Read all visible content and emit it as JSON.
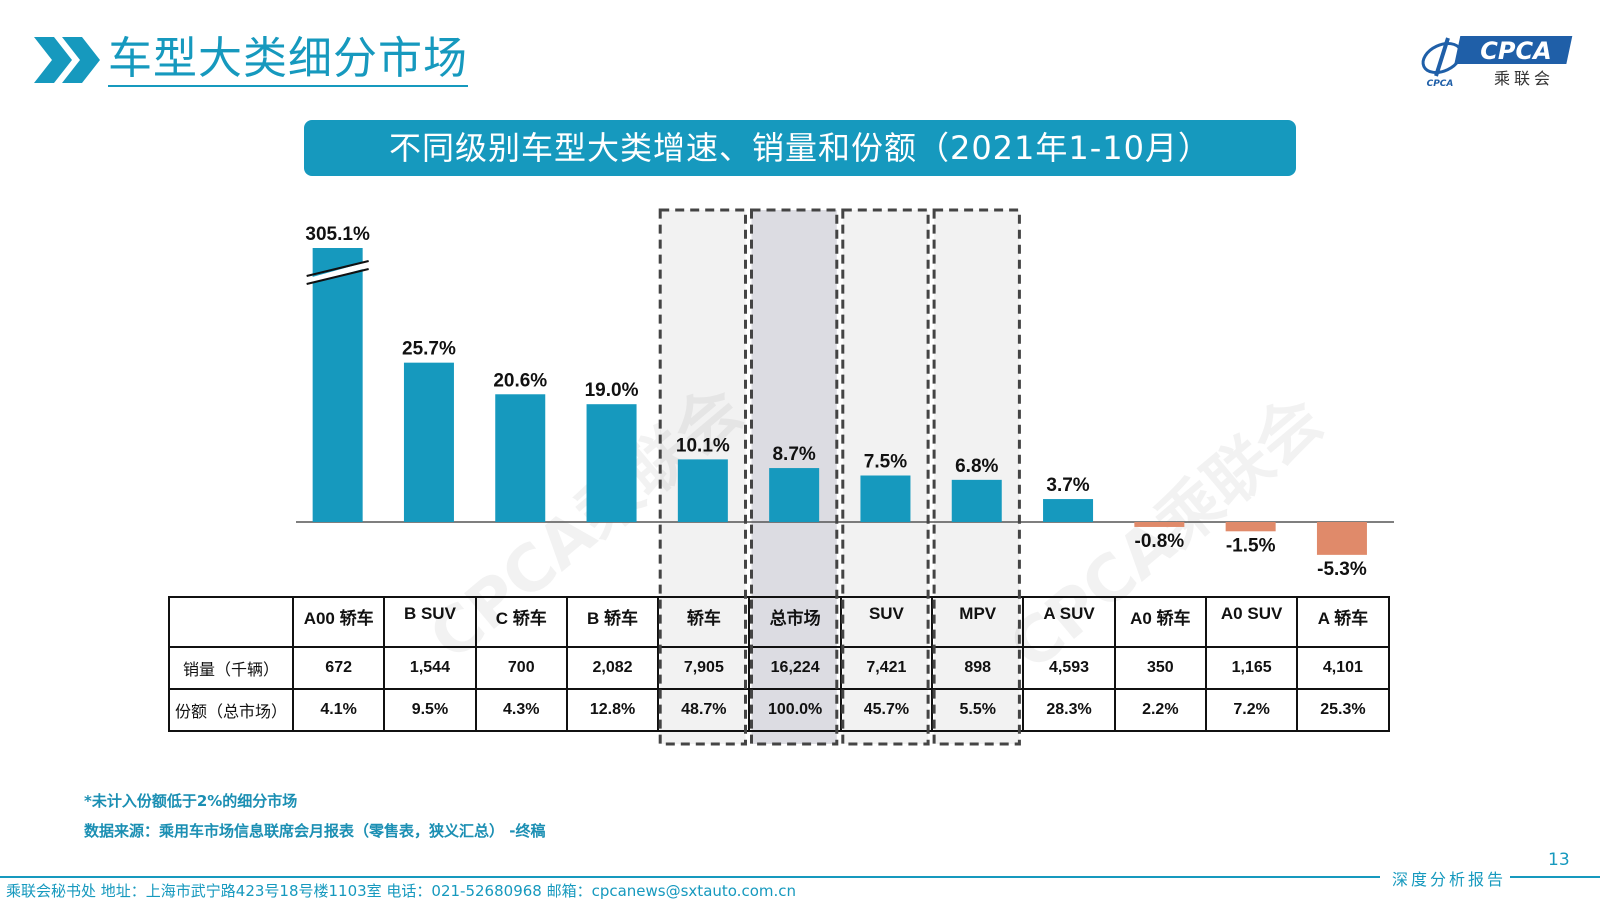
{
  "page": {
    "title": "车型大类细分市场",
    "logo": {
      "main": "CPCA",
      "sub": "乘联会",
      "small": "CPCA"
    },
    "banner": "不同级别车型大类增速、销量和份额（2021年1-10月）",
    "watermark": "CPCA乘联会",
    "note1": "*未计入份额低于2%的细分市场",
    "note2": "数据来源：乘用车市场信息联席会月报表（零售表，狭义汇总） -终稿",
    "page_number": "13",
    "footer_tag": "深度分析报告",
    "footer": "乘联会秘书处   地址：上海市武宁路423号18号楼1103室   电话：021-52680968   邮箱：cpcanews@sxtauto.com.cn"
  },
  "chart_data": {
    "type": "bar",
    "categories": [
      "A00 轿车",
      "B SUV",
      "C 轿车",
      "B 轿车",
      "轿车",
      "总市场",
      "SUV",
      "MPV",
      "A SUV",
      "A0 轿车",
      "A0 SUV",
      "A 轿车"
    ],
    "series": [
      {
        "values": [
          305.1,
          25.7,
          20.6,
          19.0,
          10.1,
          8.7,
          7.5,
          6.8,
          3.7,
          -0.8,
          -1.5,
          -5.3
        ]
      }
    ],
    "value_labels": [
      "305.1%",
      "25.7%",
      "20.6%",
      "19.0%",
      "10.1%",
      "8.7%",
      "7.5%",
      "6.8%",
      "3.7%",
      "-0.8%",
      "-1.5%",
      "-5.3%"
    ],
    "axis_break_on_first_bar": true,
    "highlighted_columns": [
      "轿车",
      "总市场",
      "SUV",
      "MPV"
    ],
    "colors": {
      "positive": "#1699BE",
      "negative": "#E08A6A",
      "highlight_fill": "#F2F2F2",
      "total_fill": "#DCDCE2"
    }
  },
  "table": {
    "rows": [
      {
        "label": "销量（千辆）",
        "cells": [
          "672",
          "1,544",
          "700",
          "2,082",
          "7,905",
          "16,224",
          "7,421",
          "898",
          "4,593",
          "350",
          "1,165",
          "4,101"
        ]
      },
      {
        "label": "份额（总市场）",
        "cells": [
          "4.1%",
          "9.5%",
          "4.3%",
          "12.8%",
          "48.7%",
          "100.0%",
          "45.7%",
          "5.5%",
          "28.3%",
          "2.2%",
          "7.2%",
          "25.3%"
        ]
      }
    ]
  }
}
